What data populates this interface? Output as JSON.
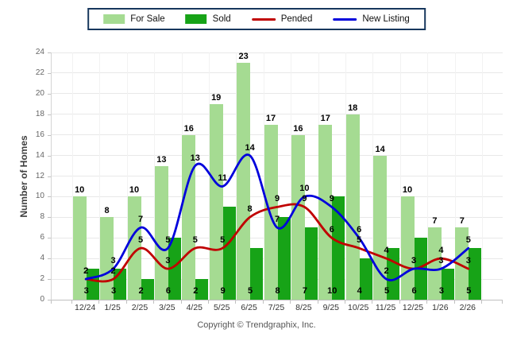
{
  "chart_data": {
    "type": "combo_bar_line",
    "title": "",
    "xlabel": "",
    "ylabel": "Number of Homes",
    "ylim": [
      0,
      24
    ],
    "ytick_step": 2,
    "grid": "horizontal-light",
    "legend_position": "top-center",
    "categories": [
      "12/24",
      "1/25",
      "2/25",
      "3/25",
      "4/25",
      "5/25",
      "6/25",
      "7/25",
      "8/25",
      "9/25",
      "10/25",
      "11/25",
      "12/25",
      "1/26",
      "2/26"
    ],
    "series": [
      {
        "name": "For Sale",
        "type": "bar",
        "color": "#A5DB92",
        "values": [
          10,
          8,
          10,
          13,
          16,
          19,
          23,
          17,
          16,
          17,
          18,
          14,
          10,
          7,
          7
        ]
      },
      {
        "name": "Sold",
        "type": "bar",
        "color": "#17A317",
        "values": [
          3,
          3,
          2,
          6,
          2,
          9,
          5,
          8,
          7,
          10,
          4,
          5,
          6,
          3,
          5
        ]
      },
      {
        "name": "Pended",
        "type": "line",
        "color": "#C00000",
        "values": [
          2,
          2,
          5,
          3,
          5,
          5,
          8,
          9,
          9,
          6,
          5,
          4,
          3,
          4,
          3
        ]
      },
      {
        "name": "New Listing",
        "type": "line",
        "color": "#0000DC",
        "values": [
          2,
          3,
          7,
          5,
          13,
          11,
          14,
          7,
          10,
          9,
          6,
          2,
          3,
          3,
          5
        ]
      }
    ]
  },
  "footer": {
    "copyright": "Copyright © Trendgraphix, Inc."
  },
  "colors": {
    "legend_border": "#17375D",
    "grid_h": "#E8E8E8",
    "grid_v": "#F2F2F2",
    "axis_line": "#C0C0C0",
    "y_tick_text": "#666666",
    "x_tick_text": "#333333",
    "data_label_text": "#000000",
    "axis_title_text": "#404040",
    "copyright_text": "#565656",
    "background": "#FFFFFF"
  }
}
